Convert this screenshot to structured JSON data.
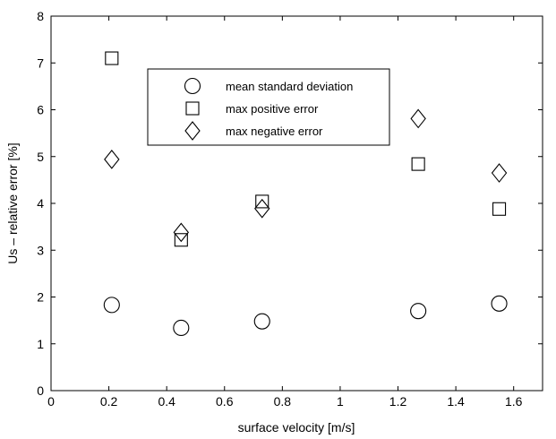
{
  "chart_data": {
    "type": "scatter",
    "xlabel": "surface velocity [m/s]",
    "ylabel": "Us – relative error [%]",
    "xlim": [
      0,
      1.7
    ],
    "ylim": [
      0,
      8
    ],
    "xticks": [
      0,
      0.2,
      0.4,
      0.6,
      0.8,
      1,
      1.2,
      1.4,
      1.6
    ],
    "xtick_labels": [
      "0",
      "0.2",
      "0.4",
      "0.6",
      "0.8",
      "1",
      "1.2",
      "1.4",
      "1.6"
    ],
    "yticks": [
      0,
      1,
      2,
      3,
      4,
      5,
      6,
      7,
      8
    ],
    "ytick_labels": [
      "0",
      "1",
      "2",
      "3",
      "4",
      "5",
      "6",
      "7",
      "8"
    ],
    "grid": false,
    "legend_position": "top-center",
    "series": [
      {
        "name": "mean standard deviation",
        "marker": "circle",
        "x": [
          0.21,
          0.45,
          0.73,
          1.27,
          1.55
        ],
        "y": [
          1.83,
          1.34,
          1.48,
          1.7,
          1.86
        ]
      },
      {
        "name": "max positive error",
        "marker": "square",
        "x": [
          0.21,
          0.45,
          0.73,
          1.27,
          1.55
        ],
        "y": [
          7.1,
          3.22,
          4.04,
          4.84,
          3.88
        ]
      },
      {
        "name": "max negative error",
        "marker": "diamond",
        "x": [
          0.21,
          0.45,
          0.73,
          1.27,
          1.55
        ],
        "y": [
          4.94,
          3.38,
          3.89,
          5.81,
          4.65
        ]
      }
    ]
  }
}
